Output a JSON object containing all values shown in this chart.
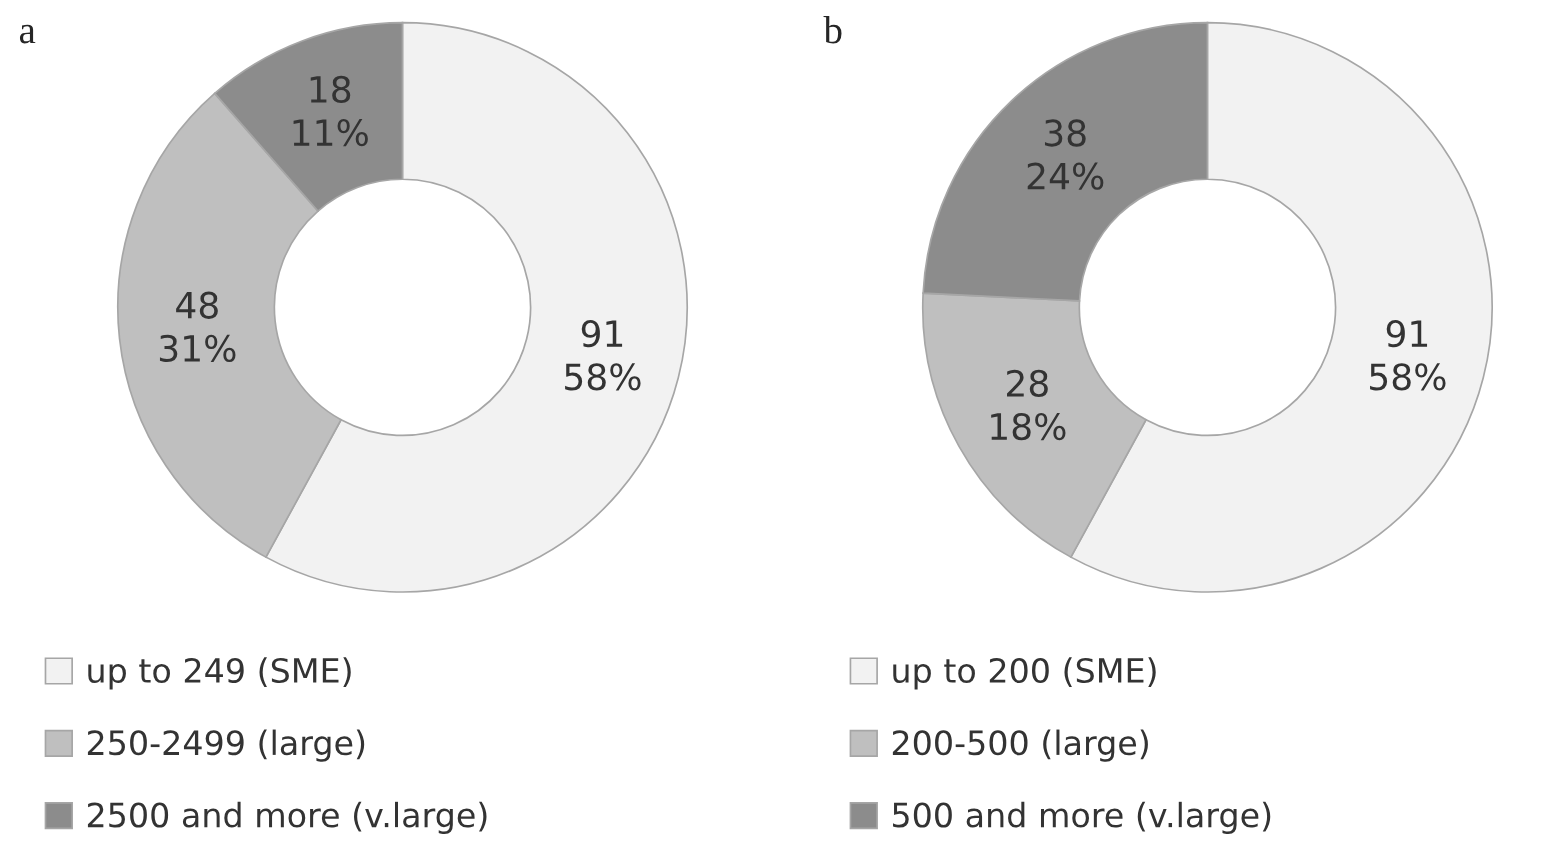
{
  "chart_data": [
    {
      "type": "donut",
      "title": "a",
      "categories": [
        "up to 249 (SME)",
        "250-2499 (large)",
        "2500 and more (v.large)"
      ],
      "values": [
        91,
        48,
        18
      ],
      "colors": [
        "#f2f2f2",
        "#bfbfbf",
        "#8c8c8c"
      ],
      "value_labels": [
        "91\n58%",
        "48\n31%",
        "18\n11%"
      ],
      "legend": "bottom"
    },
    {
      "type": "donut",
      "title": "b",
      "categories": [
        "up to 200 (SME)",
        "200-500 (large)",
        "500 and more (v.large)"
      ],
      "values": [
        91,
        28,
        38
      ],
      "colors": [
        "#f2f2f2",
        "#bfbfbf",
        "#8c8c8c"
      ],
      "value_labels": [
        "91\n58%",
        "28\n18%",
        "38\n24%"
      ],
      "legend": "bottom"
    }
  ]
}
